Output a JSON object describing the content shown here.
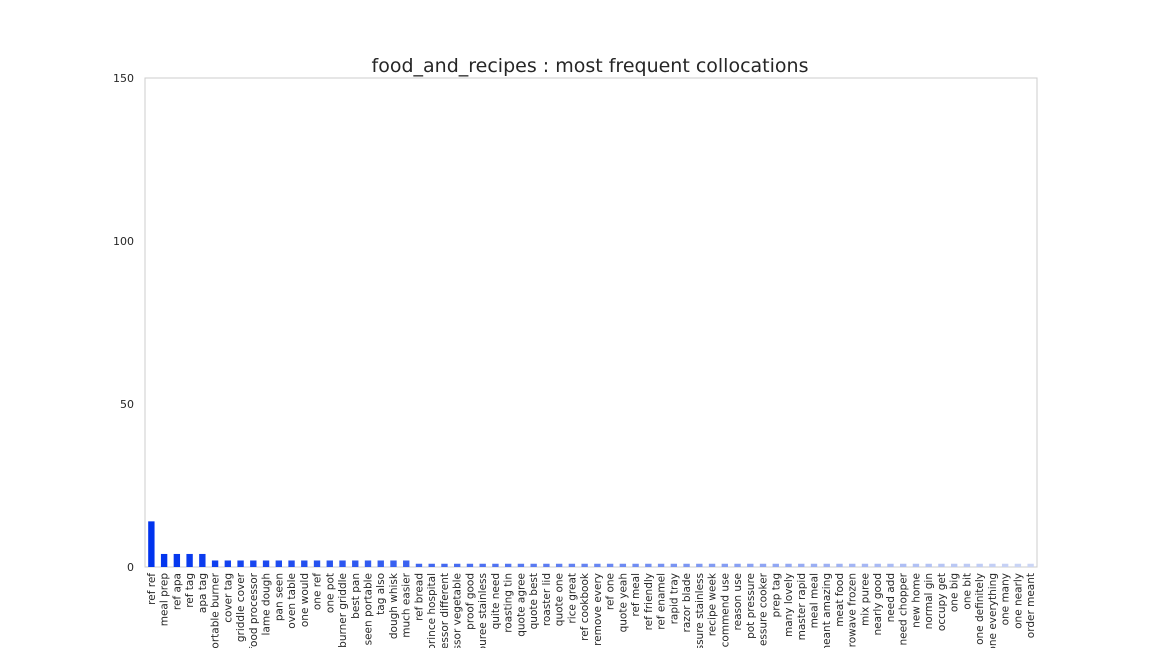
{
  "chart_data": {
    "type": "bar",
    "title": "food_and_recipes : most frequent collocations",
    "xlabel": "",
    "ylabel": "",
    "ylim": [
      0,
      150
    ],
    "yticks": [
      0,
      50,
      100,
      150
    ],
    "grid": false,
    "legend": "none",
    "color_gradient": [
      "#0033ee",
      "#ccd6f5"
    ],
    "categories": [
      "ref ref",
      "meal prep",
      "ref apa",
      "ref tag",
      "apa tag",
      "portable burner",
      "cover tag",
      "griddle cover",
      "food processor",
      "lame dough",
      "pan seen",
      "oven table",
      "one would",
      "one ref",
      "one pot",
      "burner griddle",
      "best pan",
      "seen portable",
      "tag also",
      "dough whisk",
      "much easier",
      "ref bread",
      "prince hospital",
      "essor different",
      "essor vegetable",
      "proof good",
      "puree stainless",
      "quite need",
      "roasting tin",
      "quote agree",
      "quote best",
      "roaster lid",
      "quote one",
      "rice great",
      "ref cookbook",
      "remove every",
      "ref one",
      "quote yeah",
      "ref meal",
      "ref friendly",
      "ref enamel",
      "rapid tray",
      "razor blade",
      "essure stainless",
      "recipe week",
      "commend use",
      "reason use",
      "pot pressure",
      "essure cooker",
      "prep tag",
      "many lovely",
      "master rapid",
      "meal meal",
      "meant amazing",
      "meat food",
      "crowave frozen",
      "mix puree",
      "nearly good",
      "need add",
      "need chopper",
      "new home",
      "normal gin",
      "occupy get",
      "one big",
      "one bit",
      "one definitely",
      "one everything",
      "one many",
      "one nearly",
      "order meant"
    ],
    "values": [
      14,
      4,
      4,
      4,
      4,
      2,
      2,
      2,
      2,
      2,
      2,
      2,
      2,
      2,
      2,
      2,
      2,
      2,
      2,
      2,
      2,
      1,
      1,
      1,
      1,
      1,
      1,
      1,
      1,
      1,
      1,
      1,
      1,
      1,
      1,
      1,
      1,
      1,
      1,
      1,
      1,
      1,
      1,
      1,
      1,
      1,
      1,
      1,
      1,
      1,
      1,
      1,
      1,
      1,
      1,
      1,
      1,
      1,
      1,
      1,
      1,
      1,
      1,
      1,
      1,
      1,
      1,
      1,
      1,
      1
    ]
  }
}
